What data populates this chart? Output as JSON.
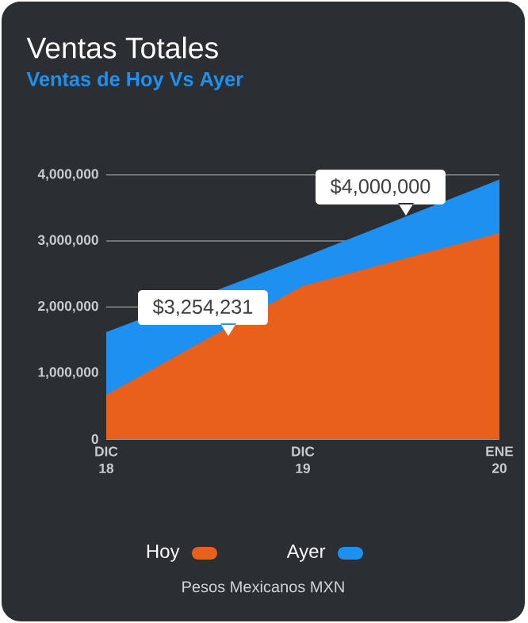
{
  "chart_data": {
    "type": "area",
    "title": "Ventas Totales",
    "subtitle": "Ventas de  Hoy Vs Ayer",
    "categories": [
      "DIC 18",
      "DIC 19",
      "ENE 20"
    ],
    "series": [
      {
        "name": "Hoy",
        "color": "#e8601c",
        "values": [
          670000,
          2320000,
          3120000
        ]
      },
      {
        "name": "Ayer",
        "color": "#1e90f0",
        "values": [
          1620000,
          2750000,
          3930000
        ]
      }
    ],
    "ylim": [
      0,
      4000000
    ],
    "yticks": [
      {
        "value": 0,
        "label": "0"
      },
      {
        "value": 1000000,
        "label": "1,000,000"
      },
      {
        "value": 2000000,
        "label": "2,000,000"
      },
      {
        "value": 3000000,
        "label": "3,000,000"
      },
      {
        "value": 4000000,
        "label": "4,000,000"
      }
    ],
    "grid": "y",
    "legend": "bottom",
    "annotations": [
      "$4,000,000",
      "$3,254,231",
      "Pesos Mexicanos MXN"
    ]
  }
}
